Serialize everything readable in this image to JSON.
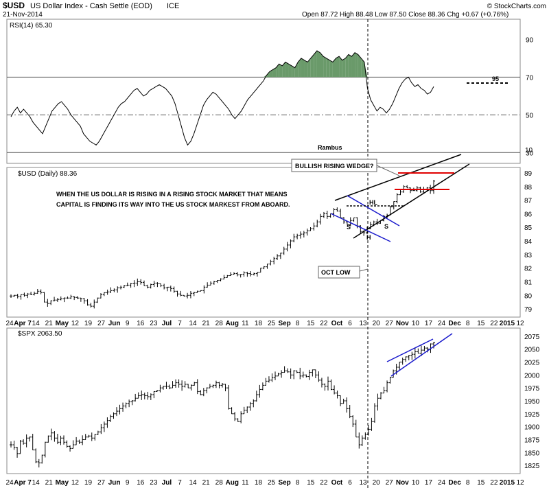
{
  "header": {
    "symbol": "$USD",
    "name": "US Dollar Index - Cash Settle (EOD)",
    "exchange": "ICE",
    "date": "21-Nov-2014",
    "ohlc": "Open 87.72  High 88.48  Low 87.50  Close 88.36  Chg +0.67 (+0.76%)",
    "watermark": "© StockCharts.com"
  },
  "chart_data": [
    {
      "type": "line",
      "title": "RSI(14) 65.30",
      "panel": "indicator",
      "ylim": [
        25,
        100
      ],
      "y_ticks": [
        30,
        50,
        70,
        90
      ],
      "reference_lines": [
        70,
        50,
        30
      ],
      "annotation": "95",
      "values": [
        49,
        52,
        54,
        51,
        53,
        51,
        49,
        46,
        44,
        42,
        40,
        44,
        48,
        52,
        54,
        56,
        57,
        55,
        53,
        50,
        48,
        46,
        44,
        40,
        38,
        36,
        35,
        34,
        36,
        39,
        42,
        45,
        48,
        51,
        54,
        56,
        57,
        59,
        61,
        63,
        64,
        62,
        60,
        61,
        63,
        64,
        65,
        66,
        65,
        64,
        62,
        60,
        56,
        50,
        44,
        38,
        34,
        36,
        40,
        45,
        50,
        55,
        58,
        60,
        62,
        61,
        59,
        57,
        55,
        53,
        50,
        48,
        50,
        52,
        55,
        58,
        60,
        62,
        64,
        66,
        68,
        71,
        73,
        74,
        75,
        77,
        76,
        78,
        77,
        76,
        75,
        78,
        80,
        79,
        78,
        80,
        82,
        84,
        83,
        81,
        80,
        79,
        78,
        80,
        81,
        79,
        80,
        82,
        81,
        83,
        82,
        80,
        78,
        64,
        58,
        55,
        52,
        54,
        53,
        51,
        53,
        56,
        60,
        64,
        67,
        69,
        70,
        67,
        65,
        66,
        64,
        63,
        61,
        62,
        65
      ]
    },
    {
      "type": "bar",
      "title": "$USD (Daily) 88.36",
      "panel": "price",
      "ylim": [
        78.5,
        89.3
      ],
      "y_ticks": [
        79,
        80,
        81,
        82,
        83,
        84,
        85,
        86,
        87,
        88,
        89
      ],
      "closes": [
        79.95,
        80.0,
        79.9,
        80.05,
        80.0,
        80.1,
        80.05,
        80.15,
        80.3,
        80.2,
        79.5,
        79.4,
        79.6,
        79.65,
        79.7,
        79.75,
        79.8,
        79.8,
        79.9,
        79.85,
        79.8,
        79.75,
        79.6,
        79.3,
        79.2,
        79.5,
        79.8,
        80.05,
        80.2,
        80.25,
        80.35,
        80.4,
        80.55,
        80.6,
        80.7,
        80.75,
        80.85,
        80.9,
        81.0,
        80.95,
        80.7,
        80.6,
        80.8,
        80.9,
        80.85,
        80.7,
        80.55,
        80.6,
        80.5,
        80.3,
        80.1,
        80.0,
        79.95,
        80.0,
        80.15,
        80.2,
        80.3,
        80.35,
        80.6,
        80.75,
        80.9,
        81.0,
        81.1,
        81.2,
        81.3,
        81.45,
        81.55,
        81.6,
        81.5,
        81.55,
        81.65,
        81.6,
        81.55,
        81.6,
        81.7,
        82.0,
        82.1,
        82.3,
        82.5,
        82.7,
        82.9,
        83.1,
        83.4,
        83.7,
        84.0,
        84.3,
        84.4,
        84.5,
        84.6,
        84.75,
        84.9,
        85.1,
        85.4,
        85.8,
        86.0,
        85.8,
        86.0,
        86.3,
        86.2,
        85.7,
        85.4,
        85.2,
        85.5,
        85.7,
        85.1,
        84.7,
        84.6,
        84.9,
        85.2,
        85.4,
        85.3,
        85.5,
        85.8,
        85.9,
        86.5,
        86.9,
        87.4,
        87.6,
        88.0,
        87.9,
        87.7,
        87.7,
        87.9,
        87.6,
        87.8,
        87.9,
        87.7,
        88.4
      ],
      "tick_labels": [
        "24",
        "Apr 7",
        "14",
        "21",
        "May",
        "12",
        "19",
        "27",
        "Jun",
        "9",
        "16",
        "23",
        "Jul",
        "7",
        "14",
        "21",
        "28",
        "Aug",
        "11",
        "18",
        "25",
        "Sep",
        "8",
        "15",
        "22",
        "Oct",
        "6",
        "13",
        "20",
        "27",
        "Nov",
        "10",
        "17",
        "24",
        "Dec",
        "8",
        "15",
        "22",
        "2015",
        "12"
      ],
      "annotations": [
        "BULLISH RISING WEDGE?",
        "WHEN THE US DOLLAR IS RISING IN A RISING STOCK MARKET THAT MEANS",
        "CAPITAL IS FINDING ITS WAY INTO THE US STOCK MARKEST FROM ABOARD.",
        "Rambus",
        "OCT LOW",
        "HL",
        "S",
        "H",
        "S",
        "10"
      ]
    },
    {
      "type": "bar",
      "title": "$SPX 2063.50",
      "panel": "price",
      "ylim": [
        1812,
        2088
      ],
      "y_ticks": [
        1825,
        1850,
        1875,
        1900,
        1925,
        1950,
        1975,
        2000,
        2025,
        2050,
        2075
      ],
      "closes": [
        1865,
        1860,
        1848,
        1872,
        1868,
        1878,
        1880,
        1855,
        1832,
        1830,
        1845,
        1870,
        1882,
        1888,
        1878,
        1870,
        1878,
        1870,
        1862,
        1858,
        1865,
        1872,
        1870,
        1875,
        1880,
        1882,
        1878,
        1885,
        1890,
        1898,
        1905,
        1912,
        1920,
        1925,
        1930,
        1935,
        1940,
        1945,
        1948,
        1950,
        1955,
        1960,
        1962,
        1960,
        1958,
        1962,
        1968,
        1970,
        1975,
        1978,
        1978,
        1975,
        1980,
        1985,
        1982,
        1978,
        1982,
        1975,
        1980,
        1985,
        1968,
        1962,
        1970,
        1975,
        1978,
        1980,
        1985,
        1980,
        1982,
        1975,
        1935,
        1925,
        1915,
        1910,
        1925,
        1932,
        1938,
        1945,
        1950,
        1962,
        1972,
        1980,
        1988,
        1990,
        1995,
        1998,
        2002,
        2005,
        2008,
        2006,
        2000,
        2008,
        2005,
        1998,
        2000,
        1997,
        2005,
        2010,
        2000,
        1990,
        1982,
        1978,
        1988,
        1972,
        1965,
        1960,
        1945,
        1950,
        1935,
        1920,
        1905,
        1880,
        1865,
        1878,
        1885,
        1895,
        1910,
        1940,
        1955,
        1965,
        1970,
        1985,
        1995,
        2008,
        2015,
        2025,
        2030,
        2035,
        2038,
        2040,
        2045,
        2042,
        2048,
        2052,
        2050,
        2060,
        2063
      ],
      "tick_labels": [
        "24",
        "Apr 7",
        "14",
        "21",
        "May",
        "12",
        "19",
        "27",
        "Jun",
        "9",
        "16",
        "23",
        "Jul",
        "7",
        "14",
        "21",
        "28",
        "Aug",
        "11",
        "18",
        "25",
        "Sep",
        "8",
        "15",
        "22",
        "Oct",
        "6",
        "13",
        "20",
        "27",
        "Nov",
        "10",
        "17",
        "24",
        "Dec",
        "8",
        "15",
        "22",
        "2015",
        "12"
      ]
    }
  ]
}
